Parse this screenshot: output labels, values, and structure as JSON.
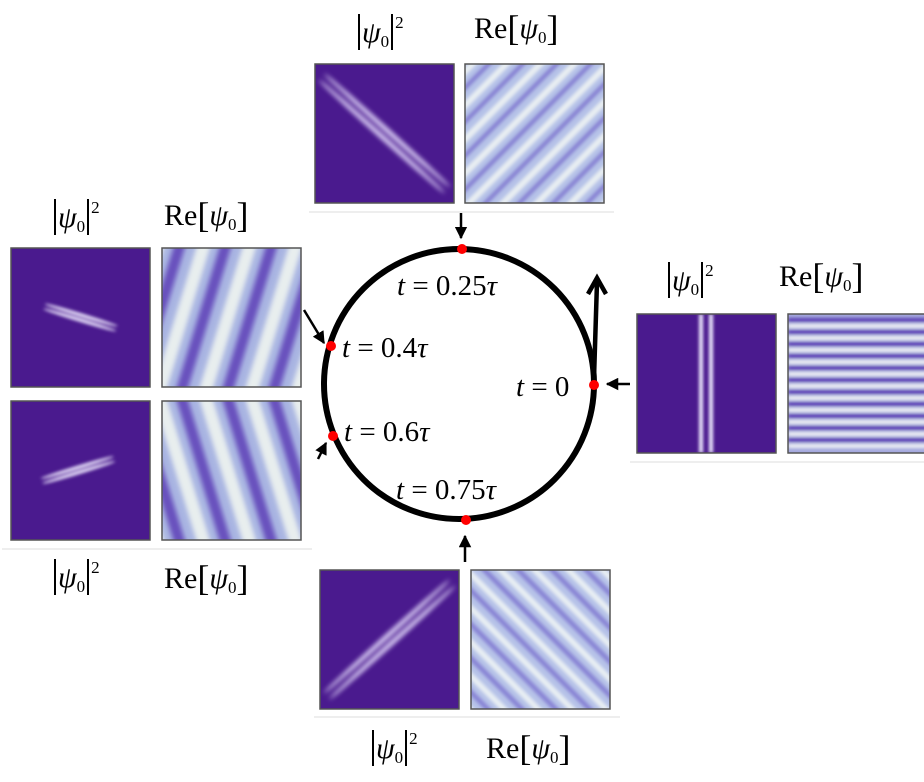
{
  "colors": {
    "panel_background": "#4a1a8e",
    "density_peak": "#ffffff",
    "re_low": "#4a1a8e",
    "re_mid": "#aebde0",
    "re_high": "#e6eef0",
    "marker": "#ff0000",
    "orbit": "#000000"
  },
  "labels": {
    "density_pre": "|",
    "density_symbol": "ψ",
    "density_subscript": "0",
    "density_post": "|",
    "density_power": "2",
    "real_prefix": "Re",
    "real_open": "[",
    "real_symbol": "ψ",
    "real_subscript": "0",
    "real_close": "]"
  },
  "times": {
    "t0": {
      "name": "t",
      "eq": " = ",
      "value": "0"
    },
    "t025": {
      "name": "t",
      "eq": " = ",
      "value": "0.25",
      "unit": "τ"
    },
    "t04": {
      "name": "t",
      "eq": " = ",
      "value": "0.4",
      "unit": "τ"
    },
    "t06": {
      "name": "t",
      "eq": " = ",
      "value": "0.6",
      "unit": "τ"
    },
    "t075": {
      "name": "t",
      "eq": " = ",
      "value": "0.75",
      "unit": "τ"
    }
  },
  "icons": {
    "marker": "red-dot-icon",
    "arrow": "arrow-icon"
  }
}
